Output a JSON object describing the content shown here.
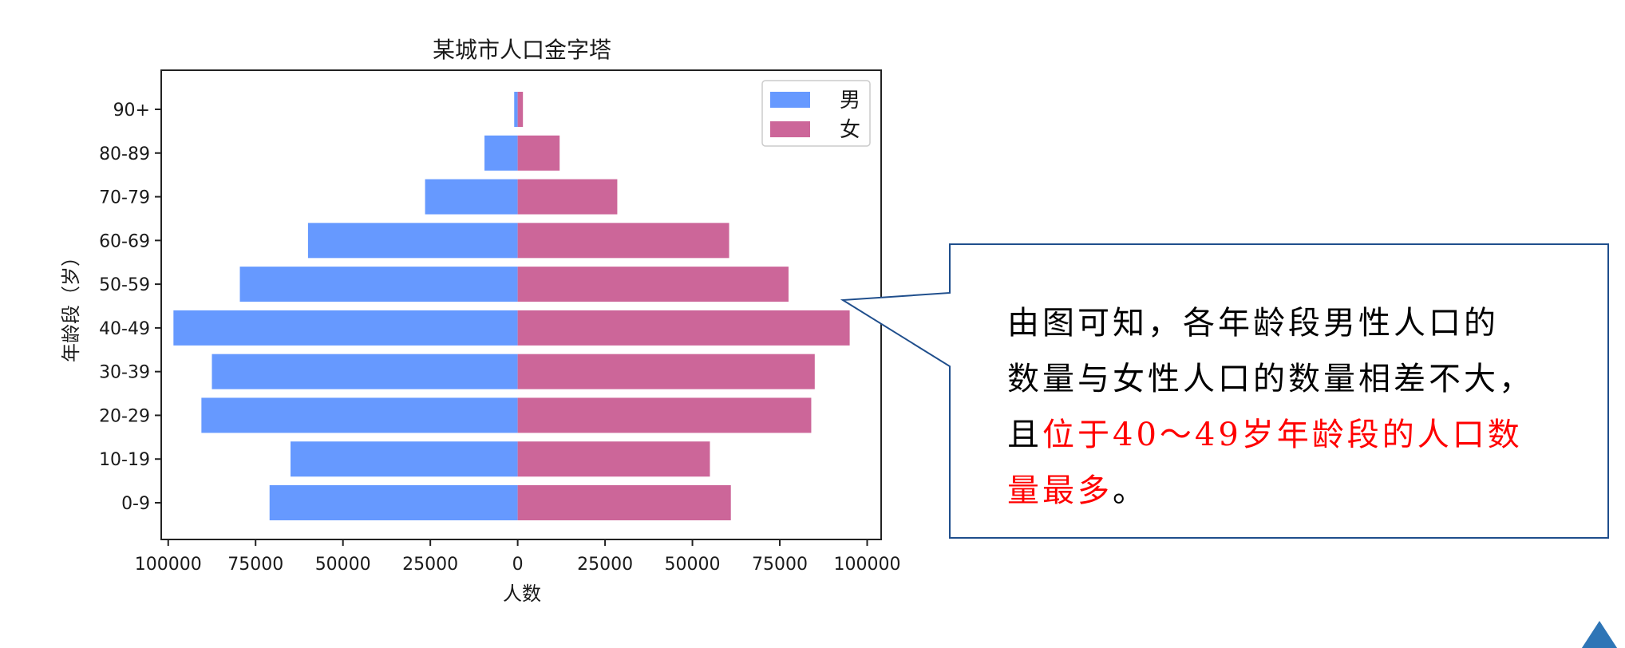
{
  "chart_data": {
    "type": "bar",
    "orientation": "horizontal",
    "title": "某城市人口金字塔",
    "xlabel": "人数",
    "ylabel": "年龄段（岁）",
    "categories": [
      "0-9",
      "10-19",
      "20-29",
      "30-39",
      "40-49",
      "50-59",
      "60-69",
      "70-79",
      "80-89",
      "90+"
    ],
    "series": [
      {
        "name": "男",
        "color": "#6699ff",
        "values": [
          71000,
          65000,
          90500,
          87500,
          98500,
          79500,
          60000,
          26500,
          9500,
          1000
        ]
      },
      {
        "name": "女",
        "color": "#cc6699",
        "values": [
          61000,
          55000,
          84000,
          85000,
          95000,
          77500,
          60500,
          28500,
          12000,
          1500
        ]
      }
    ],
    "xlim": [
      -102000,
      104000
    ],
    "xticks": [
      -100000,
      -75000,
      -50000,
      -25000,
      0,
      25000,
      50000,
      75000,
      100000
    ],
    "xtick_labels": [
      "100000",
      "75000",
      "50000",
      "25000",
      "0",
      "25000",
      "50000",
      "75000",
      "100000"
    ],
    "legend": "top-right",
    "grid": false
  },
  "callout": {
    "line1": "由图可知，各年龄段男性人口的",
    "line2": "数量与女性人口的数量相差不大，",
    "line3_prefix": "且",
    "line3_highlight": "位于40～49岁年龄段的人口数",
    "line4_highlight": "量最多",
    "line4_suffix": "。",
    "border_color": "#1f4e8c",
    "highlight_color": "#ff0000"
  }
}
